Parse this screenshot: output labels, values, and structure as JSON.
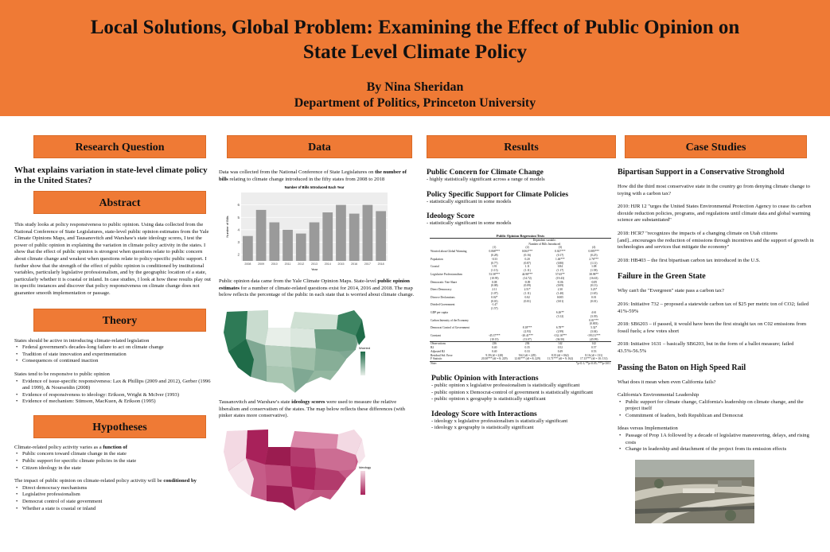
{
  "header": {
    "title_line1": "Local Solutions, Global Problem: Examining the Effect of Public Opinion on",
    "title_line2": "State Level Climate Policy",
    "author": "By Nina Sheridan",
    "department": "Department of Politics, Princeton University"
  },
  "research_question": {
    "heading": "Research Question",
    "text": "What explains variation in state-level climate policy in the United States?"
  },
  "abstract": {
    "heading": "Abstract",
    "text": "This study looks at policy responsiveness to public opinion. Using data collected from the National Conference of State Legislatures, state-level public opinion estimates from the Yale Climate Opinions Maps, and Tausanovitch and Warshaw's state ideology scores, I test the power of public opinion in explaining the variation in climate policy activity in the states. I show that the effect of public opinion is strongest when questions relate to public concern about climate change and weakest when questions relate to policy-specific public support. I further show that the strength of the effect of public opinion is conditioned by institutional variables, particularly legislative professionalism, and by the geographic location of a state, particularly whether it is coastal or inland. In case studies, I look at how these results play out in specific instances and discover that policy responsiveness on climate change does not guarantee smooth implementation or passage."
  },
  "theory": {
    "heading": "Theory",
    "intro": "States should be active in introducing climate-related legislation",
    "items1": [
      "Federal government's decades-long failure to act on climate change",
      "Tradition of state innovation and experimentation",
      "Consequences of continued inaction"
    ],
    "intro2": "States tend to be responsive to public opinion",
    "items2": [
      "Evidence of issue-specific responsiveness: Lax & Phillips (2009 and 2012), Gerber (1996 and 1999), & Nourseidin (2008)",
      "Evidence of responsiveness to ideology: Erikson, Wright & McIver (1993)",
      "Evidence of mechanism: Stimson, MacKuen, & Erikson (1995)"
    ]
  },
  "hypotheses": {
    "heading": "Hypotheses",
    "intro": "Climate-related policy activity varies as a ",
    "intro_bold": "function of",
    "items1": [
      "Public concern toward climate change in the state",
      "Public support for specific climate policies in the state",
      "Citizen ideology in the state"
    ],
    "intro2": "The impact of public opinion on climate-related policy activity will be ",
    "intro2_bold": "conditioned by",
    "items2": [
      "Direct democracy mechanisms",
      "Legislative professionalism",
      "Democrat control of state government",
      "Whether a state is coastal or inland"
    ]
  },
  "data_section": {
    "heading": "Data",
    "p1_a": "Data was collected from the National Conference of State Legislatures on ",
    "p1_bold": "the number of bills",
    "p1_b": " relating to climate change introduced in the fifty states from 2008 to 2018",
    "p2_a": "Public opinion data came from the Yale Climate Opinion Maps. State-level ",
    "p2_bold": "public opinion estimates",
    "p2_b": " for a number of climate-related questions exist for 2014, 2016 and 2018. The map below reflects the percentage of the public in each state that is worried about climate change.",
    "p3_a": "Tausanovitch and Warshaw's state ",
    "p3_bold": "ideology scores",
    "p3_b": " were used to measure the relative liberalism and conservatism of the states. The map below reflects these differences (with pinker states more conservative).",
    "map1_legend_title": "Worried",
    "map2_legend_title": "Ideology"
  },
  "chart_data": {
    "type": "bar",
    "title": "Number of Bills Introduced Each Year",
    "xlabel": "Year",
    "ylabel": "Number of Bills",
    "categories": [
      "2008",
      "2009",
      "2010",
      "2011",
      "2012",
      "2013",
      "2014",
      "2015",
      "2016",
      "2017",
      "2018"
    ],
    "values": [
      3.5,
      5.6,
      4.6,
      4.0,
      3.7,
      4.6,
      5.4,
      6.0,
      5.3,
      6.0,
      5.5
    ],
    "ylim": [
      0,
      7
    ],
    "yticks": [
      2,
      3,
      4,
      5,
      6
    ],
    "grid": true,
    "bar_color": "#9a9a9a"
  },
  "results": {
    "heading": "Results",
    "s1_title": "Public Concern for Climate Change",
    "s1_text": "- highly statistically significant across a range of models",
    "s2_title": "Policy Specific Support for Climate Policies",
    "s2_text": "- statistically significant in some models",
    "s3_title": "Ideology Score",
    "s3_text": "- statistically significant in some models",
    "table": {
      "title": "Public Opinion Regression Tests",
      "dep_var": "Dependent variable:",
      "dep_var_name": "Number of Bills Introduced",
      "columns": [
        "(1)",
        "(2)",
        "(3)",
        "(4)"
      ],
      "rows": [
        {
          "label": "Worried about Global Warming",
          "vals": [
            "0.068***",
            "0.063***",
            "0.027***",
            "0.085***"
          ],
          "se": [
            "(0.28)",
            "(0.16)",
            "(0.17)",
            "(0.25)"
          ]
        },
        {
          "label": "Population",
          "vals": [
            "-0.33",
            "0.20",
            "1.46***",
            "2.76***"
          ],
          "se": [
            "(0.77)",
            "(0.87)",
            "(0.80)",
            "(1.11)"
          ]
        },
        {
          "label": "Coastal",
          "vals": [
            "1.91",
            "1.11",
            "0.84",
            "1.08"
          ],
          "se": [
            "(1.13)",
            "(1.11)",
            "(1.17)",
            "(1.58)"
          ]
        },
        {
          "label": "Legislative Professionalism",
          "vals": [
            "53.58***",
            "44.98***",
            "57.65**",
            "38.98**"
          ],
          "se": [
            "(10.95)",
            "(14.72)",
            "(19.43)",
            "(16.63)"
          ]
        },
        {
          "label": "Democratic Vote Share",
          "vals": [
            "0.08",
            "-0.09",
            "-0.06",
            "-0.09"
          ],
          "se": [
            "(0.08)",
            "(0.09)",
            "(0.09)",
            "(0.13)"
          ]
        },
        {
          "label": "Direct Democracy",
          "vals": [
            "2.11",
            "2.51*",
            "2.30",
            "3.23*"
          ],
          "se": [
            "(1.07)",
            "(1.11)",
            "(1.40)",
            "(1.65)"
          ]
        },
        {
          "label": "Divorce Declarations",
          "vals": [
            "0.02*",
            "0.02",
            "0.005",
            "0.01"
          ],
          "se": [
            "(0.01)",
            "(0.01)",
            "(0.01)",
            "(0.01)"
          ]
        },
        {
          "label": "Divided Government",
          "vals": [
            "-1.47",
            "",
            "",
            ""
          ],
          "se": [
            "(1.57)",
            "",
            "",
            ""
          ]
        },
        {
          "label": "GDP per capita",
          "vals": [
            "",
            "",
            "6.26**",
            "4.61"
          ],
          "se": [
            "",
            "",
            "(3.12)",
            "(3.39)"
          ]
        },
        {
          "label": "Carbon Intensity of the Economy",
          "vals": [
            "",
            "",
            "",
            "0.01***"
          ],
          "se": [
            "",
            "",
            "",
            "(0.003)"
          ]
        },
        {
          "label": "Democrat Control of Government",
          "vals": [
            "",
            "8.18***",
            "6.78**",
            "5.32*"
          ],
          "se": [
            "",
            "(2.93)",
            "(2.99)",
            "(3.04)"
          ]
        },
        {
          "label": "Constant",
          "vals": [
            "-45.37***",
            "-20.41***",
            "-132.16***",
            "-193.51***"
          ],
          "se": [
            "(10.15)",
            "(13.07)",
            "(36.50)",
            "(45.99)"
          ]
        }
      ],
      "stats": [
        {
          "label": "Observations",
          "vals": [
            "236",
            "236",
            "142",
            "142"
          ]
        },
        {
          "label": "R2",
          "vals": [
            "0.40",
            "0.35",
            "0.52",
            "0.57"
          ]
        },
        {
          "label": "Adjusted R2",
          "vals": [
            "0.40",
            "0.33",
            "0.49",
            "0.53"
          ]
        },
        {
          "label": "Residual Std. Error",
          "vals": [
            "9.39 (df = 228)",
            "9.62 (df = 229)",
            "8.35 (df = 062)",
            "8.16 (df = 131)"
          ]
        },
        {
          "label": "F Statistic",
          "vals": [
            "20.30*** (df = 8; 229)",
            "12.65*** (df = 8; 229)",
            "11.71*** (df = 9; 162)",
            "17.13*** (df = 10; 131)"
          ]
        }
      ],
      "note_label": "Note:",
      "note": "*p<0.1; **p<0.05; ***p<0.01"
    },
    "s4_title": "Public Opinion with Interactions",
    "s4_items": [
      "- public opinion x legislative professionalism is statistically significant",
      "- public opinion x Democrat-control of government is statistically significant",
      "- public opinion x geography is statistically significant"
    ],
    "s5_title": "Ideology Score with Interactions",
    "s5_items": [
      "- ideology x legislative professionalism is statistically significant",
      "- ideology x geography is statistically significant"
    ]
  },
  "case_studies": {
    "heading": "Case Studies",
    "c1_title": "Bipartisan Support in a Conservative Stronghold",
    "c1_q": "How did the third most conservative state in the country go from denying climate change to toying with a carbon tax?",
    "c1_p1": "2010: HJR 12 \"urges the United States Environmental Protection Agency to cease its carbon dioxide reduction policies, programs, and regulations until climate data and global warming science are substantiated\"",
    "c1_p2": "2018: HCR7 \"recognizes the impacts of a changing climate on Utah citizens [and]...encourages the reduction of emissions through incentives and the support of growth in technologies and services that mitigate the economy\"",
    "c1_p3": "2018: HB403 – the first bipartisan carbon tax introduced in the U.S.",
    "c2_title": "Failure in the Green State",
    "c2_q": "Why can't the \"Evergreen\" state pass a carbon tax?",
    "c2_p1": "2016: Initiative 732 – proposed a statewide carbon tax of $25 per metric ton of CO2; failed 41%-59%",
    "c2_p2": "2018: SB6203 – if passed, it would have been the first straight tax on C02 emissions from fossil fuels; a few votes short",
    "c2_p3": "2018: Initiative 1631 – basically SB6203, but in the form of a ballot measure; failed 43.5%-56.5%",
    "c3_title": "Passing the Baton on High Speed Rail",
    "c3_q": "What does it mean when even California fails?",
    "c3_sub1": "California's Environmental Leadership",
    "c3_items1": [
      "Public support for climate change, California's leadership on climate change, and the project itself",
      "Commitment of leaders, both Republican and Democrat"
    ],
    "c3_sub2": "Ideas versus Implementation",
    "c3_items2": [
      "Passage of Prop 1A followed by a decade of legislative maneuvering, delays, and rising costs",
      "Change in leadership and detachment of the project from its emission effects"
    ]
  },
  "colors": {
    "accent": "#ef7a35",
    "map_green_dark": "#1f6b48",
    "map_green_light": "#e8efe9",
    "map_pink_dark": "#a8215a",
    "map_pink_light": "#f3d9e3"
  }
}
